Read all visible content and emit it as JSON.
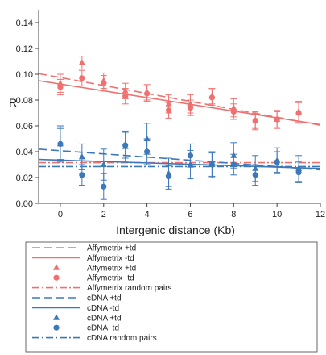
{
  "chart_data": {
    "type": "scatter",
    "xlabel": "Intergenic distance (Kb)",
    "ylabel": "R",
    "xlim": [
      -1,
      12
    ],
    "ylim": [
      0,
      0.15
    ],
    "x_ticks": [
      0,
      2,
      4,
      6,
      8,
      10,
      12
    ],
    "y_ticks": [
      "0.00",
      "0.02",
      "0.04",
      "0.06",
      "0.08",
      "0.10",
      "0.12",
      "0.14"
    ],
    "legend_position": "bottom",
    "colors": {
      "affymetrix": "#f07070",
      "cdna": "#3d78b8"
    },
    "series": [
      {
        "name": "Affymetrix +td",
        "kind": "line",
        "style": "dashed",
        "color": "#f07070",
        "x": [
          -1,
          12
        ],
        "y": [
          0.1005,
          0.0605
        ]
      },
      {
        "name": "Affymetrix -td",
        "kind": "line",
        "style": "solid",
        "color": "#f07070",
        "x": [
          -1,
          12
        ],
        "y": [
          0.095,
          0.061
        ]
      },
      {
        "name": "Affymetrix +td",
        "kind": "points",
        "marker": "triangle",
        "color": "#f07070",
        "x": [
          0,
          1,
          2,
          3,
          4,
          5,
          6,
          7,
          8,
          9,
          10,
          11
        ],
        "y": [
          0.093,
          0.109,
          0.095,
          0.087,
          0.086,
          0.077,
          0.077,
          0.083,
          0.074,
          0.064,
          0.065,
          0.071
        ],
        "err": [
          0.007,
          0.005,
          0.006,
          0.006,
          0.006,
          0.007,
          0.007,
          0.006,
          0.007,
          0.007,
          0.007,
          0.008
        ]
      },
      {
        "name": "Affymetrix -td",
        "kind": "points",
        "marker": "circle",
        "color": "#f07070",
        "x": [
          0,
          1,
          2,
          3,
          4,
          5,
          6,
          7,
          8,
          9,
          10,
          11
        ],
        "y": [
          0.09,
          0.097,
          0.093,
          0.083,
          0.085,
          0.072,
          0.074,
          0.082,
          0.071,
          0.064,
          0.065,
          0.07
        ],
        "err": [
          0.006,
          0.006,
          0.006,
          0.006,
          0.006,
          0.006,
          0.006,
          0.006,
          0.006,
          0.006,
          0.006,
          0.008
        ]
      },
      {
        "name": "Affymetrix random pairs",
        "kind": "line",
        "style": "dash-dot",
        "color": "#f07070",
        "x": [
          -1,
          12
        ],
        "y": [
          0.0315,
          0.0315
        ]
      },
      {
        "name": "cDNA +td",
        "kind": "line",
        "style": "dashed",
        "color": "#3d78b8",
        "x": [
          -1,
          12
        ],
        "y": [
          0.042,
          0.026
        ]
      },
      {
        "name": "cDNA -td",
        "kind": "line",
        "style": "solid",
        "color": "#3d78b8",
        "x": [
          -1,
          12
        ],
        "y": [
          0.034,
          0.027
        ]
      },
      {
        "name": "cDNA +td",
        "kind": "points",
        "marker": "triangle",
        "color": "#3d78b8",
        "x": [
          0,
          1,
          2,
          3,
          4,
          5,
          6,
          7,
          8,
          9,
          10,
          11
        ],
        "y": [
          0.046,
          0.036,
          0.03,
          0.044,
          0.05,
          0.023,
          0.03,
          0.03,
          0.037,
          0.027,
          0.033,
          0.027
        ],
        "err": [
          0.014,
          0.01,
          0.012,
          0.012,
          0.012,
          0.012,
          0.011,
          0.01,
          0.01,
          0.01,
          0.01,
          0.01
        ]
      },
      {
        "name": "cDNA -td",
        "kind": "points",
        "marker": "circle",
        "color": "#3d78b8",
        "x": [
          0,
          1,
          2,
          3,
          4,
          5,
          6,
          7,
          8,
          9,
          10,
          11
        ],
        "y": [
          0.046,
          0.022,
          0.013,
          0.045,
          0.04,
          0.021,
          0.037,
          0.03,
          0.03,
          0.022,
          0.032,
          0.024
        ],
        "err": [
          0.012,
          0.008,
          0.01,
          0.01,
          0.01,
          0.008,
          0.009,
          0.009,
          0.008,
          0.008,
          0.008,
          0.008
        ]
      },
      {
        "name": "cDNA random pairs",
        "kind": "line",
        "style": "dash-dot",
        "color": "#3d78b8",
        "x": [
          -1,
          12
        ],
        "y": [
          0.0285,
          0.0285
        ]
      }
    ]
  }
}
